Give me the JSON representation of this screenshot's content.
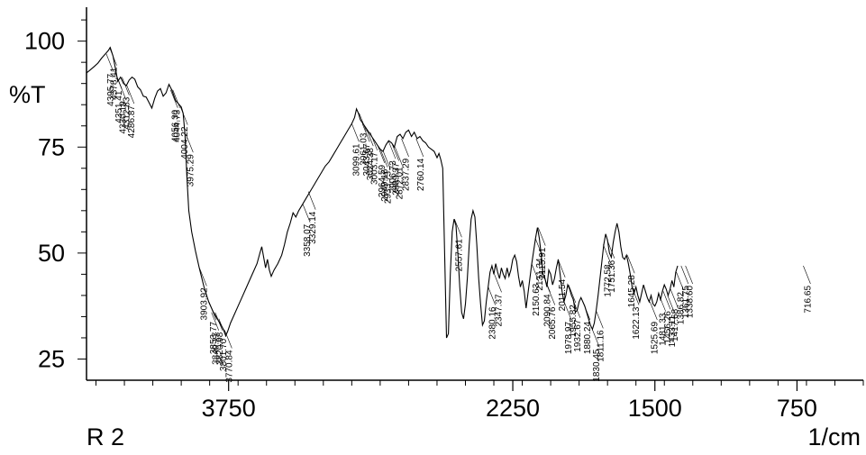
{
  "chart_data": {
    "type": "line",
    "ylabel": "%T",
    "xlabel": "1/cm",
    "sample_label": "R 2",
    "xlim": [
      4500,
      400
    ],
    "ylim": [
      20,
      108
    ],
    "x_tick_labels": [
      "3750",
      "2250",
      "1500",
      "750"
    ],
    "y_tick_labels": [
      "100",
      "75",
      "50",
      "25"
    ],
    "x_ticks": [
      3750,
      2250,
      1500,
      750
    ],
    "y_ticks": [
      100,
      75,
      50,
      25
    ],
    "grid": false,
    "series": [
      {
        "color": "#000000",
        "points": [
          [
            4500,
            92.5
          ],
          [
            4480,
            93.2
          ],
          [
            4460,
            94.0
          ],
          [
            4440,
            94.8
          ],
          [
            4420,
            96.0
          ],
          [
            4400,
            97.0
          ],
          [
            4385,
            97.8
          ],
          [
            4375,
            98.5
          ],
          [
            4360,
            96.5
          ],
          [
            4345,
            93.0
          ],
          [
            4335,
            90.5
          ],
          [
            4320,
            91.5
          ],
          [
            4305,
            90.0
          ],
          [
            4290,
            89.5
          ],
          [
            4275,
            90.8
          ],
          [
            4260,
            91.5
          ],
          [
            4245,
            91.0
          ],
          [
            4230,
            89.2
          ],
          [
            4215,
            88.5
          ],
          [
            4200,
            87.0
          ],
          [
            4185,
            86.8
          ],
          [
            4170,
            85.5
          ],
          [
            4155,
            84.2
          ],
          [
            4140,
            86.5
          ],
          [
            4125,
            88.2
          ],
          [
            4110,
            88.8
          ],
          [
            4095,
            87.0
          ],
          [
            4080,
            87.8
          ],
          [
            4065,
            89.8
          ],
          [
            4050,
            88.5
          ],
          [
            4030,
            86.0
          ],
          [
            4000,
            84.5
          ],
          [
            3990,
            83.0
          ],
          [
            3980,
            78.0
          ],
          [
            3970,
            68.0
          ],
          [
            3960,
            60.0
          ],
          [
            3945,
            55.0
          ],
          [
            3925,
            50.5
          ],
          [
            3905,
            46.5
          ],
          [
            3880,
            42.0
          ],
          [
            3855,
            38.5
          ],
          [
            3830,
            36.0
          ],
          [
            3810,
            34.5
          ],
          [
            3790,
            33.0
          ],
          [
            3775,
            31.8
          ],
          [
            3765,
            30.5
          ],
          [
            3755,
            31.5
          ],
          [
            3740,
            33.5
          ],
          [
            3720,
            35.5
          ],
          [
            3700,
            37.5
          ],
          [
            3680,
            39.5
          ],
          [
            3660,
            41.5
          ],
          [
            3640,
            43.5
          ],
          [
            3620,
            45.5
          ],
          [
            3600,
            47.5
          ],
          [
            3585,
            50.0
          ],
          [
            3575,
            51.5
          ],
          [
            3565,
            49.0
          ],
          [
            3555,
            46.5
          ],
          [
            3545,
            48.5
          ],
          [
            3535,
            46.0
          ],
          [
            3525,
            44.5
          ],
          [
            3510,
            46.0
          ],
          [
            3490,
            47.5
          ],
          [
            3470,
            49.5
          ],
          [
            3455,
            52.0
          ],
          [
            3440,
            55.0
          ],
          [
            3425,
            57.0
          ],
          [
            3410,
            59.5
          ],
          [
            3395,
            58.5
          ],
          [
            3380,
            60.0
          ],
          [
            3360,
            61.5
          ],
          [
            3340,
            63.0
          ],
          [
            3320,
            64.5
          ],
          [
            3300,
            66.0
          ],
          [
            3280,
            67.5
          ],
          [
            3260,
            69.0
          ],
          [
            3240,
            70.5
          ],
          [
            3220,
            71.5
          ],
          [
            3200,
            73.0
          ],
          [
            3180,
            74.5
          ],
          [
            3160,
            76.0
          ],
          [
            3140,
            77.5
          ],
          [
            3120,
            79.0
          ],
          [
            3100,
            80.5
          ],
          [
            3085,
            82.0
          ],
          [
            3075,
            84.0
          ],
          [
            3065,
            83.0
          ],
          [
            3055,
            81.5
          ],
          [
            3040,
            80.5
          ],
          [
            3025,
            79.5
          ],
          [
            3010,
            78.5
          ],
          [
            2995,
            77.5
          ],
          [
            2980,
            76.5
          ],
          [
            2965,
            75.5
          ],
          [
            2950,
            74.5
          ],
          [
            2935,
            74.0
          ],
          [
            2920,
            75.5
          ],
          [
            2905,
            76.5
          ],
          [
            2890,
            76.0
          ],
          [
            2875,
            75.0
          ],
          [
            2860,
            77.5
          ],
          [
            2845,
            78.0
          ],
          [
            2830,
            77.0
          ],
          [
            2815,
            78.5
          ],
          [
            2800,
            79.0
          ],
          [
            2785,
            77.5
          ],
          [
            2770,
            78.5
          ],
          [
            2755,
            77.0
          ],
          [
            2740,
            77.5
          ],
          [
            2725,
            76.5
          ],
          [
            2710,
            76.0
          ],
          [
            2695,
            75.0
          ],
          [
            2680,
            74.5
          ],
          [
            2665,
            74.0
          ],
          [
            2650,
            72.5
          ],
          [
            2640,
            73.5
          ],
          [
            2630,
            72.0
          ],
          [
            2620,
            70.0
          ],
          [
            2610,
            50.0
          ],
          [
            2600,
            30.0
          ],
          [
            2590,
            31.0
          ],
          [
            2580,
            45.0
          ],
          [
            2570,
            55.0
          ],
          [
            2560,
            58.0
          ],
          [
            2550,
            56.5
          ],
          [
            2540,
            50.0
          ],
          [
            2530,
            42.0
          ],
          [
            2520,
            36.0
          ],
          [
            2510,
            34.5
          ],
          [
            2500,
            38.0
          ],
          [
            2490,
            44.0
          ],
          [
            2480,
            52.0
          ],
          [
            2470,
            58.0
          ],
          [
            2460,
            60.0
          ],
          [
            2450,
            58.5
          ],
          [
            2440,
            52.0
          ],
          [
            2430,
            44.0
          ],
          [
            2420,
            38.0
          ],
          [
            2410,
            33.0
          ],
          [
            2400,
            34.0
          ],
          [
            2390,
            38.5
          ],
          [
            2380,
            42.0
          ],
          [
            2370,
            45.5
          ],
          [
            2360,
            47.0
          ],
          [
            2350,
            45.0
          ],
          [
            2340,
            47.5
          ],
          [
            2330,
            45.5
          ],
          [
            2320,
            44.0
          ],
          [
            2310,
            46.5
          ],
          [
            2300,
            45.0
          ],
          [
            2290,
            44.0
          ],
          [
            2280,
            46.5
          ],
          [
            2270,
            44.5
          ],
          [
            2260,
            46.0
          ],
          [
            2250,
            48.5
          ],
          [
            2240,
            49.5
          ],
          [
            2230,
            48.0
          ],
          [
            2220,
            44.5
          ],
          [
            2210,
            42.0
          ],
          [
            2200,
            43.5
          ],
          [
            2190,
            41.0
          ],
          [
            2180,
            37.0
          ],
          [
            2170,
            40.5
          ],
          [
            2160,
            44.0
          ],
          [
            2150,
            47.5
          ],
          [
            2140,
            50.5
          ],
          [
            2130,
            53.5
          ],
          [
            2120,
            56.0
          ],
          [
            2110,
            53.5
          ],
          [
            2100,
            49.5
          ],
          [
            2090,
            45.0
          ],
          [
            2080,
            44.0
          ],
          [
            2070,
            42.0
          ],
          [
            2060,
            46.0
          ],
          [
            2050,
            45.0
          ],
          [
            2040,
            42.5
          ],
          [
            2030,
            44.0
          ],
          [
            2020,
            46.5
          ],
          [
            2010,
            48.5
          ],
          [
            2000,
            45.0
          ],
          [
            1990,
            41.0
          ],
          [
            1980,
            38.5
          ],
          [
            1970,
            40.0
          ],
          [
            1960,
            42.5
          ],
          [
            1950,
            41.5
          ],
          [
            1940,
            40.0
          ],
          [
            1930,
            39.0
          ],
          [
            1920,
            36.0
          ],
          [
            1910,
            36.5
          ],
          [
            1900,
            38.5
          ],
          [
            1890,
            39.5
          ],
          [
            1880,
            38.5
          ],
          [
            1870,
            37.5
          ],
          [
            1860,
            36.0
          ],
          [
            1850,
            34.5
          ],
          [
            1840,
            33.0
          ],
          [
            1830,
            32.0
          ],
          [
            1820,
            33.5
          ],
          [
            1810,
            36.5
          ],
          [
            1800,
            40.0
          ],
          [
            1790,
            44.0
          ],
          [
            1780,
            48.0
          ],
          [
            1770,
            52.0
          ],
          [
            1760,
            54.5
          ],
          [
            1750,
            53.0
          ],
          [
            1740,
            50.0
          ],
          [
            1730,
            49.0
          ],
          [
            1720,
            52.5
          ],
          [
            1710,
            55.0
          ],
          [
            1700,
            57.0
          ],
          [
            1690,
            55.0
          ],
          [
            1680,
            51.5
          ],
          [
            1670,
            49.0
          ],
          [
            1660,
            48.5
          ],
          [
            1650,
            49.5
          ],
          [
            1640,
            47.5
          ],
          [
            1630,
            45.0
          ],
          [
            1620,
            42.0
          ],
          [
            1610,
            40.5
          ],
          [
            1600,
            42.0
          ],
          [
            1590,
            40.0
          ],
          [
            1580,
            38.5
          ],
          [
            1570,
            40.5
          ],
          [
            1560,
            42.5
          ],
          [
            1550,
            41.0
          ],
          [
            1540,
            39.5
          ],
          [
            1530,
            38.5
          ],
          [
            1520,
            40.0
          ],
          [
            1510,
            38.0
          ],
          [
            1500,
            37.5
          ],
          [
            1490,
            38.5
          ],
          [
            1480,
            40.5
          ],
          [
            1470,
            39.0
          ],
          [
            1460,
            41.0
          ],
          [
            1450,
            42.5
          ],
          [
            1440,
            41.5
          ],
          [
            1430,
            40.0
          ],
          [
            1420,
            41.5
          ],
          [
            1410,
            43.5
          ],
          [
            1400,
            42.0
          ],
          [
            1390,
            45.5
          ],
          [
            1380,
            47.0
          ]
        ]
      }
    ],
    "peak_labels": [
      "4395.77",
      "4378.41",
      "4351.41",
      "4330.19",
      "4312.83",
      "4286.87",
      "4056.30",
      "4044.73",
      "4004.22",
      "3975.29",
      "3903.92",
      "3853.77",
      "3840.27",
      "3820.98",
      "3801.70",
      "3770.84",
      "3358.07",
      "3329.14",
      "3099.61",
      "3061.03",
      "3043.67",
      "3024.38",
      "3003.17",
      "2964.59",
      "2949.16",
      "2933.73",
      "2906.73",
      "2889.37",
      "2872.01",
      "2837.29",
      "2760.14",
      "2557.61",
      "2380.16",
      "2347.37",
      "2150.63",
      "2131.34",
      "2115.91",
      "2090.84",
      "2065.76",
      "2011.54",
      "1978.97",
      "1955.82",
      "1932.67",
      "1880.24",
      "1830.45",
      "1811.16",
      "1772.58",
      "1751.36",
      "716.65",
      "1645.28",
      "1622.13",
      "1525.69",
      "1481.33",
      "1456.26",
      "1433.11",
      "1417.68",
      "1386.82",
      "1361.75",
      "1338.60"
    ]
  }
}
